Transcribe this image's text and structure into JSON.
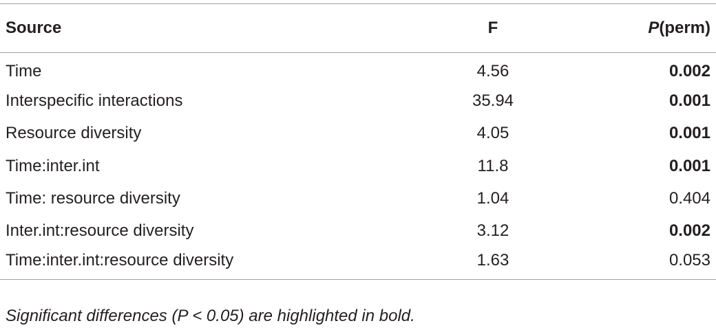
{
  "header": {
    "columns": [
      "Source",
      "F",
      {
        "italic": "P",
        "rest": "(perm)"
      }
    ]
  },
  "table": {
    "rows": [
      {
        "cells": [
          "Time",
          "4.56",
          "0.002"
        ],
        "bold_p": true
      },
      {
        "cells": [
          "Interspecific interactions",
          "35.94",
          "0.001"
        ],
        "bold_p": true
      },
      {
        "cells": [
          "Resource diversity",
          "4.05",
          "0.001"
        ],
        "bold_p": true
      },
      {
        "cells": [
          "Time:inter.int",
          "11.8",
          "0.001"
        ],
        "bold_p": true
      },
      {
        "cells": [
          "Time: resource diversity",
          "1.04",
          "0.404"
        ],
        "bold_p": false
      },
      {
        "cells": [
          "Inter.int:resource diversity",
          "3.12",
          "0.002"
        ],
        "bold_p": true
      },
      {
        "cells": [
          "Time:inter.int:resource diversity",
          "1.63",
          "0.053"
        ],
        "bold_p": false
      }
    ]
  },
  "footnote": "Significant differences (P < 0.05) are highlighted in bold."
}
